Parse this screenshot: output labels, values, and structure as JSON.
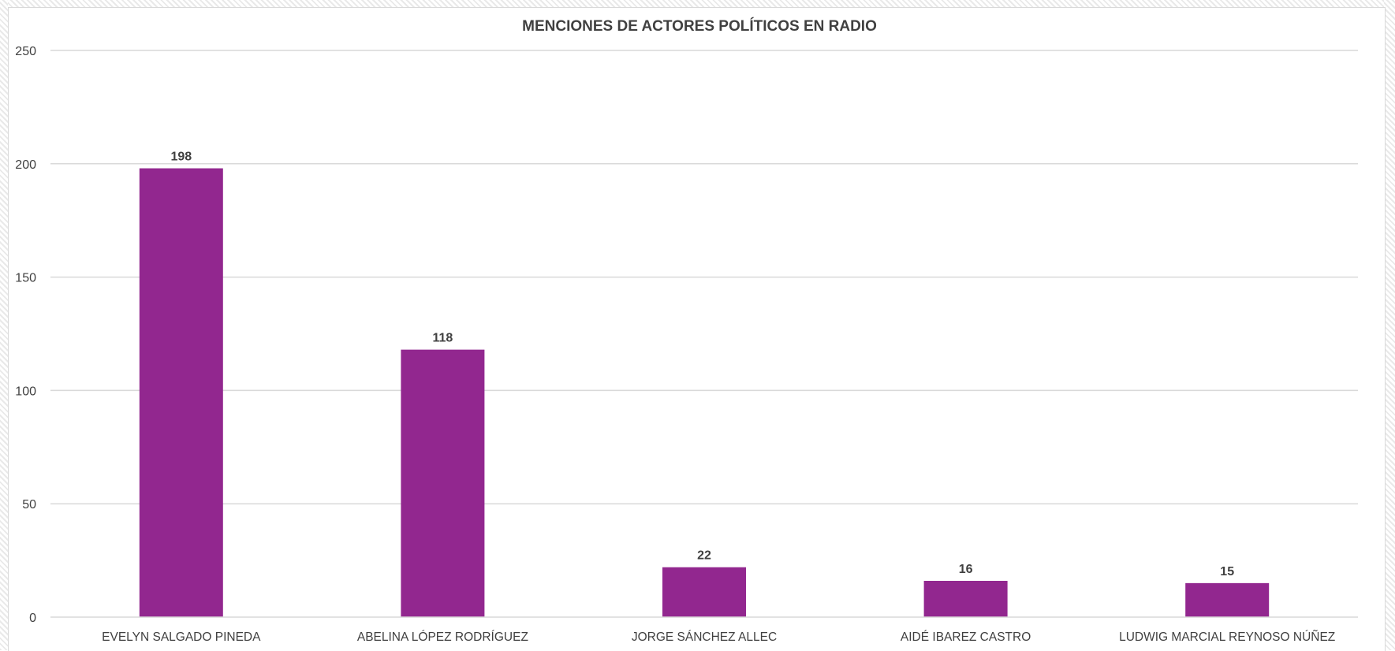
{
  "chart_data": {
    "type": "bar",
    "title": "MENCIONES DE ACTORES POLÍTICOS EN RADIO",
    "xlabel": "",
    "ylabel": "",
    "categories": [
      "EVELYN SALGADO PINEDA",
      "ABELINA LÓPEZ RODRÍGUEZ",
      "JORGE SÁNCHEZ ALLEC",
      "AIDÉ IBAREZ CASTRO",
      "LUDWIG MARCIAL REYNOSO NÚÑEZ"
    ],
    "values": [
      198,
      118,
      22,
      16,
      15
    ],
    "ylim": [
      0,
      250
    ],
    "yticks": [
      "0",
      "50",
      "100",
      "150",
      "200",
      "250"
    ],
    "data_labels": [
      "198",
      "118",
      "22",
      "16",
      "15"
    ],
    "grid": true,
    "legend": "none",
    "colors": {
      "bar": "#92278f",
      "grid": "#d9d9d9",
      "text": "#404040",
      "title": "#404040"
    }
  }
}
